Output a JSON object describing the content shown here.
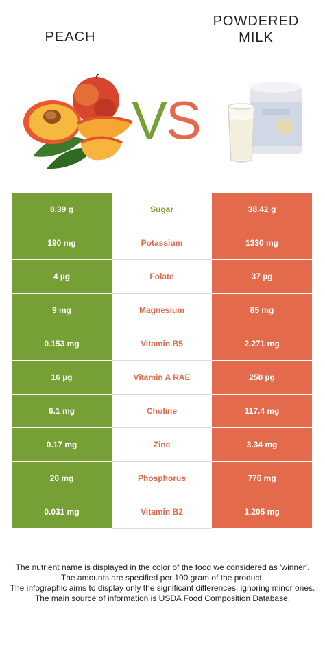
{
  "left_food": {
    "name": "Peach"
  },
  "right_food": {
    "name_line1": "Powdered",
    "name_line2": "Milk"
  },
  "vs_text": "VS",
  "colors": {
    "left": "#76a035",
    "right": "#e36b4c"
  },
  "rows": [
    {
      "left": "8.39 g",
      "nutrient": "Sugar",
      "right": "38.42 g",
      "winner": "left"
    },
    {
      "left": "190 mg",
      "nutrient": "Potassium",
      "right": "1330 mg",
      "winner": "right"
    },
    {
      "left": "4 µg",
      "nutrient": "Folate",
      "right": "37 µg",
      "winner": "right"
    },
    {
      "left": "9 mg",
      "nutrient": "Magnesium",
      "right": "85 mg",
      "winner": "right"
    },
    {
      "left": "0.153 mg",
      "nutrient": "Vitamin B5",
      "right": "2.271 mg",
      "winner": "right"
    },
    {
      "left": "16 µg",
      "nutrient": "Vitamin A RAE",
      "right": "258 µg",
      "winner": "right"
    },
    {
      "left": "6.1 mg",
      "nutrient": "Choline",
      "right": "117.4 mg",
      "winner": "right"
    },
    {
      "left": "0.17 mg",
      "nutrient": "Zinc",
      "right": "3.34 mg",
      "winner": "right"
    },
    {
      "left": "20 mg",
      "nutrient": "Phosphorus",
      "right": "776 mg",
      "winner": "right"
    },
    {
      "left": "0.031 mg",
      "nutrient": "Vitamin B2",
      "right": "1.205 mg",
      "winner": "right"
    }
  ],
  "footer": {
    "line1": "The nutrient name is displayed in the color of the food we considered as 'winner'.",
    "line2": "The amounts are specified per 100 gram of the product.",
    "line3": "The infographic aims to display only the significant differences, ignoring minor ones.",
    "line4": "The main source of information is USDA Food Composition Database."
  }
}
